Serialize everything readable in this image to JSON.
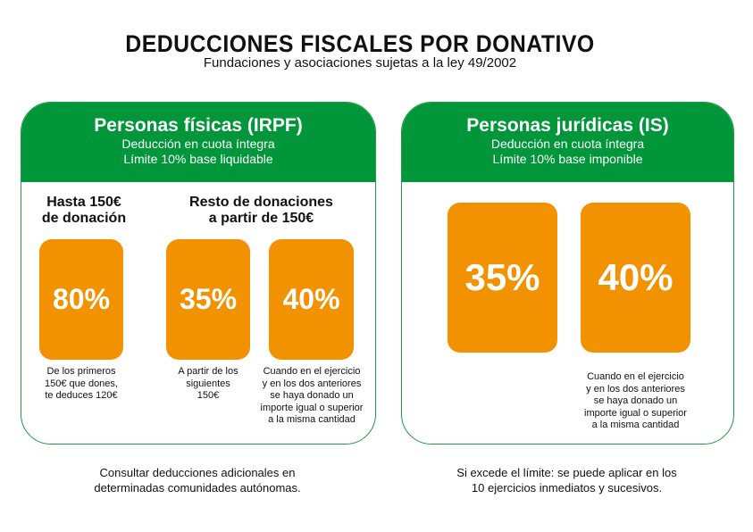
{
  "title": "DEDUCCIONES FISCALES POR DONATIVO",
  "subtitle": "Fundaciones y asociaciones sujetas a la ley 49/2002",
  "colors": {
    "green": "#009639",
    "orange": "#f39200"
  },
  "fisicas": {
    "heading": "Personas físicas (IRPF)",
    "line1": "Deducción en cuota íntegra",
    "line2": "Límite 10% base liquidable",
    "col1_heading": [
      "Hasta 150€",
      "de donación"
    ],
    "col2_heading": [
      "Resto de donaciones",
      "a partir de 150€"
    ],
    "boxes": [
      {
        "value": "80%",
        "note": [
          "De los primeros",
          "150€ que dones,",
          "te deduces 120€"
        ]
      },
      {
        "value": "35%",
        "note": [
          "A partir de los",
          "siguientes",
          "150€"
        ]
      },
      {
        "value": "40%",
        "note": [
          "Cuando en el ejercicio",
          "y en los dos anteriores",
          "se haya donado un",
          "importe igual o superior",
          "a la misma cantidad"
        ]
      }
    ],
    "footer": [
      "Consultar deducciones adicionales en",
      "determinadas comunidades autónomas."
    ]
  },
  "juridicas": {
    "heading": "Personas jurídicas (IS)",
    "line1": "Deducción en cuota íntegra",
    "line2": "Límite 10% base imponible",
    "boxes": [
      {
        "value": "35%"
      },
      {
        "value": "40%",
        "note": [
          "Cuando en el ejercicio",
          "y en los dos anteriores",
          "se haya donado un",
          "importe igual o superior",
          "a la misma cantidad"
        ]
      }
    ],
    "footer": [
      "Si excede el límite: se puede aplicar en los",
      "10 ejercicios inmediatos y sucesivos."
    ]
  }
}
